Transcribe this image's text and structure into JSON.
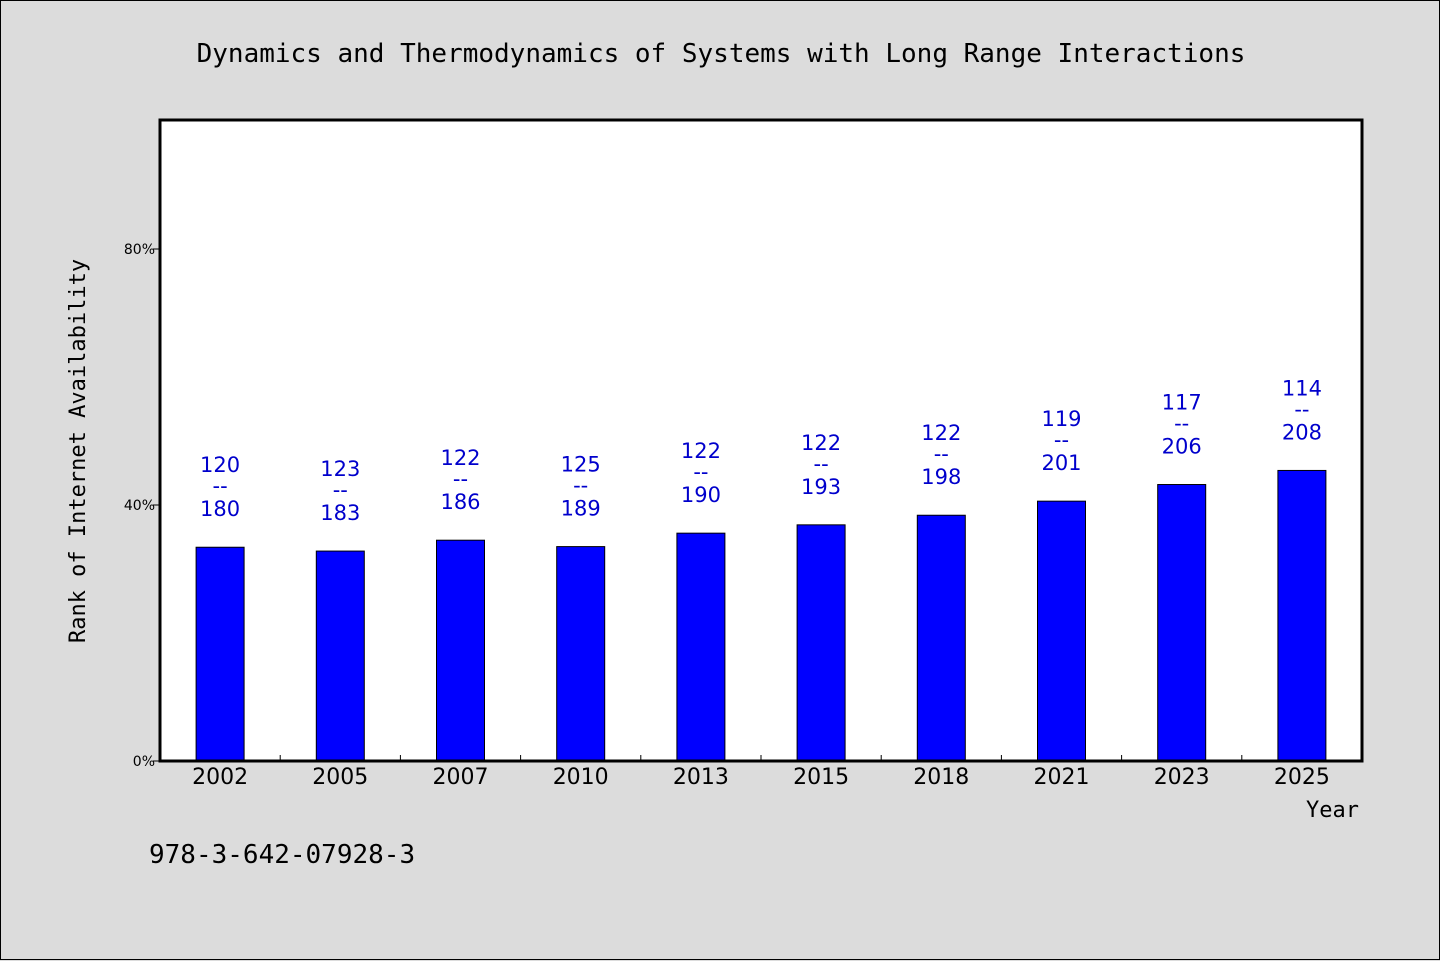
{
  "chart_data": {
    "type": "bar",
    "title": "Dynamics and Thermodynamics of Systems with Long Range Interactions",
    "xlabel": "Year",
    "ylabel": "Rank of Internet Availability",
    "categories": [
      "2002",
      "2005",
      "2007",
      "2010",
      "2013",
      "2015",
      "2018",
      "2021",
      "2023",
      "2025"
    ],
    "values": [
      33.4,
      32.8,
      34.5,
      33.5,
      35.6,
      36.9,
      38.4,
      40.6,
      43.2,
      45.4
    ],
    "ylim": [
      0,
      100
    ],
    "yticks": [
      {
        "value": 0,
        "label": "0%"
      },
      {
        "value": 40,
        "label": "40%"
      },
      {
        "value": 80,
        "label": "80%"
      }
    ],
    "data_labels": [
      {
        "top": "120",
        "mid": "--",
        "bottom": "180"
      },
      {
        "top": "123",
        "mid": "--",
        "bottom": "183"
      },
      {
        "top": "122",
        "mid": "--",
        "bottom": "186"
      },
      {
        "top": "125",
        "mid": "--",
        "bottom": "189"
      },
      {
        "top": "122",
        "mid": "--",
        "bottom": "190"
      },
      {
        "top": "122",
        "mid": "--",
        "bottom": "193"
      },
      {
        "top": "122",
        "mid": "--",
        "bottom": "198"
      },
      {
        "top": "119",
        "mid": "--",
        "bottom": "201"
      },
      {
        "top": "117",
        "mid": "--",
        "bottom": "206"
      },
      {
        "top": "114",
        "mid": "--",
        "bottom": "208"
      }
    ],
    "grid": false,
    "colors": {
      "bar": "#0000ff",
      "label": "#0000cc",
      "background": "#dcdcdc",
      "plot": "#ffffff"
    }
  },
  "footnote": "978-3-642-07928-3"
}
